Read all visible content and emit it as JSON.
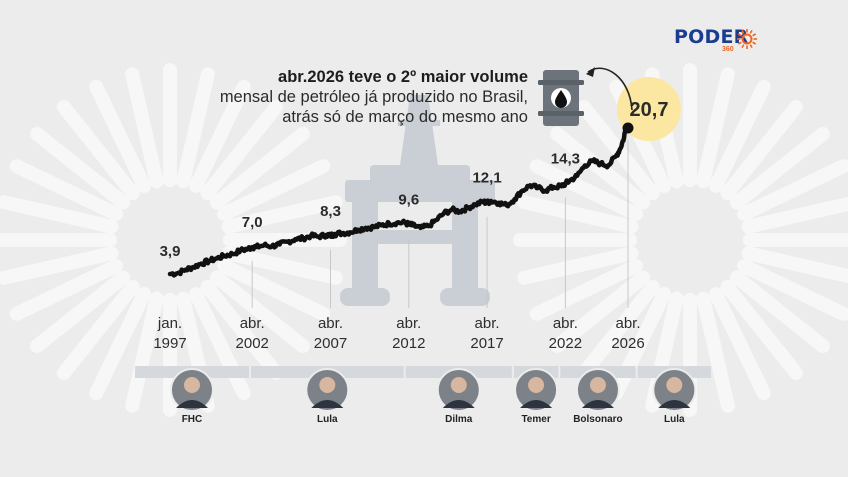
{
  "brand": {
    "name": "PODER",
    "sub": "360"
  },
  "headline": {
    "bold": "abr.2026 teve o 2º maior volume",
    "line2": "mensal de petróleo já produzido no Brasil,",
    "line3": "atrás só de março do mesmo ano"
  },
  "colors": {
    "line": "#111111",
    "highlight": "#fbe7a1",
    "watermark": "#f7f7f7",
    "platform": "#c9cfd5",
    "band": "#d5d9de"
  },
  "chart_data": {
    "type": "line",
    "y_unit": "",
    "x_ticks": [
      {
        "line1": "jan.",
        "line2": "1997",
        "year": 1997.0
      },
      {
        "line1": "abr.",
        "line2": "2002",
        "year": 2002.25
      },
      {
        "line1": "abr.",
        "line2": "2007",
        "year": 2007.25
      },
      {
        "line1": "abr.",
        "line2": "2012",
        "year": 2012.25
      },
      {
        "line1": "abr.",
        "line2": "2017",
        "year": 2017.25
      },
      {
        "line1": "abr.",
        "line2": "2022",
        "year": 2022.25
      },
      {
        "line1": "abr.",
        "line2": "2026",
        "year": 2026.25
      }
    ],
    "labeled_points": [
      {
        "year": 1997.0,
        "value": 3.9,
        "label": "3,9"
      },
      {
        "year": 2002.25,
        "value": 7.0,
        "label": "7,0"
      },
      {
        "year": 2007.25,
        "value": 8.3,
        "label": "8,3"
      },
      {
        "year": 2012.25,
        "value": 9.6,
        "label": "9,6"
      },
      {
        "year": 2017.25,
        "value": 12.1,
        "label": "12,1"
      },
      {
        "year": 2022.25,
        "value": 14.3,
        "label": "14,3"
      },
      {
        "year": 2026.25,
        "value": 20.7,
        "label": "20,7"
      }
    ],
    "series": [
      {
        "x": [
          1997.0,
          1997.5,
          1998.0,
          1998.5,
          1999.0,
          1999.5,
          2000.0,
          2000.5,
          2001.0,
          2001.5,
          2002.0,
          2002.25,
          2002.5,
          2003.0,
          2003.5,
          2004.0,
          2004.5,
          2005.0,
          2005.5,
          2006.0,
          2006.5,
          2007.0,
          2007.25,
          2007.5,
          2008.0,
          2008.5,
          2009.0,
          2009.5,
          2010.0,
          2010.5,
          2011.0,
          2011.5,
          2012.0,
          2012.25,
          2012.5,
          2013.0,
          2013.5,
          2014.0,
          2014.5,
          2015.0,
          2015.5,
          2016.0,
          2016.5,
          2017.0,
          2017.25,
          2017.5,
          2018.0,
          2018.5,
          2019.0,
          2019.5,
          2020.0,
          2020.5,
          2021.0,
          2021.5,
          2022.0,
          2022.25,
          2022.5,
          2023.0,
          2023.5,
          2024.0,
          2024.5,
          2025.0,
          2025.5,
          2025.75,
          2026.0,
          2026.1,
          2026.25
        ],
        "values": [
          3.9,
          4.0,
          4.4,
          4.7,
          5.1,
          5.4,
          5.7,
          6.0,
          6.2,
          6.6,
          6.8,
          7.0,
          7.0,
          7.2,
          7.1,
          7.3,
          7.6,
          7.9,
          8.0,
          8.3,
          8.2,
          8.4,
          8.3,
          8.5,
          8.6,
          8.7,
          9.0,
          9.2,
          9.3,
          9.5,
          9.7,
          9.8,
          9.8,
          9.6,
          9.5,
          9.2,
          9.4,
          10.1,
          10.9,
          11.3,
          11.1,
          11.5,
          11.9,
          12.2,
          12.1,
          12.3,
          12.1,
          11.8,
          12.5,
          13.5,
          14.1,
          13.8,
          13.5,
          13.9,
          14.0,
          14.3,
          14.6,
          15.2,
          16.4,
          16.9,
          16.6,
          16.4,
          17.5,
          18.3,
          19.6,
          20.9,
          20.7
        ]
      }
    ],
    "presidents": [
      {
        "name": "FHC",
        "start": 1997.0,
        "end": 2003.0
      },
      {
        "name": "Lula",
        "start": 2003.0,
        "end": 2011.0
      },
      {
        "name": "Dilma",
        "start": 2011.0,
        "end": 2016.6
      },
      {
        "name": "Temer",
        "start": 2016.6,
        "end": 2019.0
      },
      {
        "name": "Bolsonaro",
        "start": 2019.0,
        "end": 2023.0
      },
      {
        "name": "Lula",
        "start": 2023.0,
        "end": 2026.9
      }
    ]
  }
}
